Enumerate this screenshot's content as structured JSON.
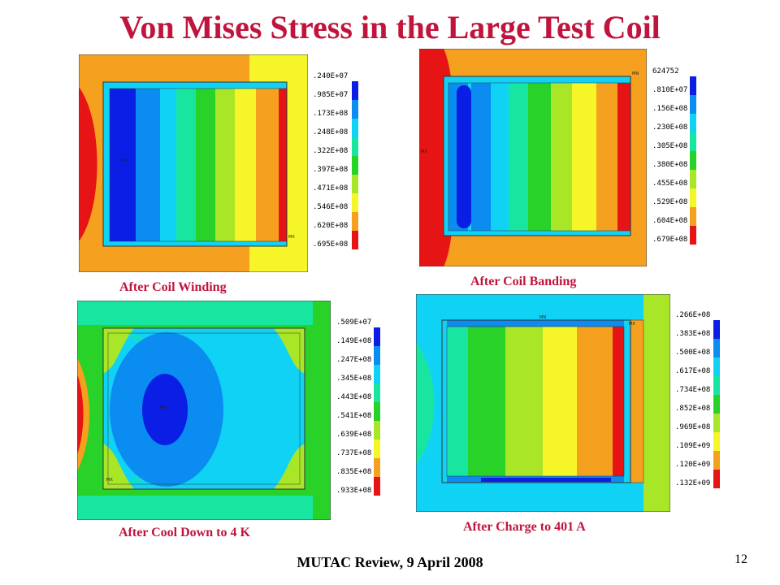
{
  "title": "Von Mises Stress in the Large Test Coil",
  "colors": {
    "title": "#c0143c",
    "contour_scale": [
      "#0a1ee6",
      "#0a8cf0",
      "#10d2f5",
      "#18e6a0",
      "#28d228",
      "#aae628",
      "#f5f528",
      "#f5a01e",
      "#e61414"
    ]
  },
  "panels": [
    {
      "caption": "After Coil Winding",
      "legend": [
        ".240E+07",
        ".985E+07",
        ".173E+08",
        ".248E+08",
        ".322E+08",
        ".397E+08",
        ".471E+08",
        ".546E+08",
        ".620E+08",
        ".695E+08"
      ],
      "mn_label": "MN",
      "mx_label": "MX"
    },
    {
      "caption": "After Coil Banding",
      "legend": [
        "624752",
        ".810E+07",
        ".156E+08",
        ".230E+08",
        ".305E+08",
        ".380E+08",
        ".455E+08",
        ".529E+08",
        ".604E+08",
        ".679E+08"
      ],
      "mn_label": "MX",
      "mx_label": "MN"
    },
    {
      "caption": "After Cool Down to 4 K",
      "legend": [
        ".509E+07",
        ".149E+08",
        ".247E+08",
        ".345E+08",
        ".443E+08",
        ".541E+08",
        ".639E+08",
        ".737E+08",
        ".835E+08",
        ".933E+08"
      ],
      "mn_label": "MN",
      "mx_label": "MX"
    },
    {
      "caption": "After Charge to 401 A",
      "legend": [
        ".266E+08",
        ".383E+08",
        ".500E+08",
        ".617E+08",
        ".734E+08",
        ".852E+08",
        ".969E+08",
        ".109E+09",
        ".120E+09",
        ".132E+09"
      ],
      "mn_label": "MN",
      "mx_label": "MX"
    }
  ],
  "footer": "MUTAC Review, 9 April 2008",
  "page_number": "12"
}
